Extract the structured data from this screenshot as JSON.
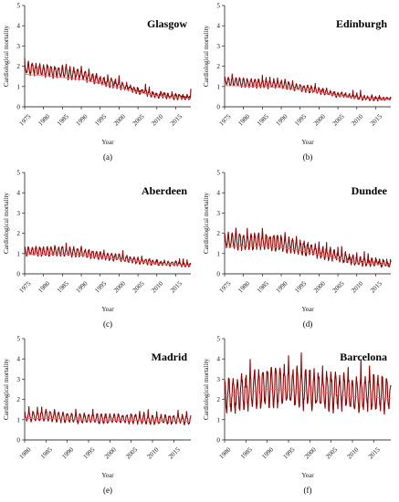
{
  "colors": {
    "raw": "#8b0000",
    "trend": "#f06a6a",
    "axis": "#000000"
  },
  "chart_data": [
    {
      "type": "line",
      "panel": "a",
      "title": "Glasgow",
      "caption": "(a)",
      "xlabel": "Year",
      "ylabel": "Cardiological mortality",
      "xlim": [
        1975,
        2019
      ],
      "ylim": [
        0,
        5
      ],
      "xticks": [
        1975,
        1980,
        1985,
        1990,
        1995,
        2000,
        2005,
        2010,
        2015
      ],
      "yticks": [
        0,
        1,
        2,
        3,
        4,
        5
      ],
      "x": [
        1975,
        1980,
        1985,
        1990,
        1995,
        2000,
        2005,
        2010,
        2015,
        2019
      ],
      "series": [
        {
          "role": "observed",
          "values": [
            1.9,
            1.8,
            1.7,
            1.6,
            1.3,
            1.1,
            0.8,
            0.6,
            0.5,
            0.45
          ],
          "seasonal_amplitude": 0.28
        },
        {
          "role": "trend",
          "values": [
            1.6,
            1.55,
            1.45,
            1.35,
            1.15,
            0.95,
            0.72,
            0.55,
            0.45,
            0.42
          ]
        }
      ]
    },
    {
      "type": "line",
      "panel": "b",
      "title": "Edinburgh",
      "caption": "(b)",
      "xlabel": "Year",
      "ylabel": "Cardiological mortality",
      "xlim": [
        1975,
        2019
      ],
      "ylim": [
        0,
        5
      ],
      "xticks": [
        1975,
        1980,
        1985,
        1990,
        1995,
        2000,
        2005,
        2010,
        2015
      ],
      "yticks": [
        0,
        1,
        2,
        3,
        4,
        5
      ],
      "x": [
        1975,
        1980,
        1985,
        1990,
        1995,
        2000,
        2005,
        2010,
        2015,
        2019
      ],
      "series": [
        {
          "role": "observed",
          "values": [
            1.25,
            1.2,
            1.15,
            1.1,
            0.95,
            0.8,
            0.6,
            0.48,
            0.4,
            0.38
          ],
          "seasonal_amplitude": 0.2
        },
        {
          "role": "trend",
          "values": [
            1.05,
            1.03,
            1.0,
            0.95,
            0.85,
            0.72,
            0.55,
            0.45,
            0.38,
            0.36
          ]
        }
      ]
    },
    {
      "type": "line",
      "panel": "c",
      "title": "Aberdeen",
      "caption": "(c)",
      "xlabel": "Year",
      "ylabel": "Cardiological mortality",
      "xlim": [
        1975,
        2019
      ],
      "ylim": [
        0,
        5
      ],
      "xticks": [
        1975,
        1980,
        1985,
        1990,
        1995,
        2000,
        2005,
        2010,
        2015
      ],
      "yticks": [
        0,
        1,
        2,
        3,
        4,
        5
      ],
      "x": [
        1975,
        1980,
        1985,
        1990,
        1995,
        2000,
        2005,
        2010,
        2015,
        2019
      ],
      "series": [
        {
          "role": "observed",
          "values": [
            1.1,
            1.1,
            1.12,
            1.05,
            0.9,
            0.8,
            0.65,
            0.55,
            0.5,
            0.45
          ],
          "seasonal_amplitude": 0.2
        },
        {
          "role": "trend",
          "values": [
            0.95,
            0.97,
            0.98,
            0.92,
            0.82,
            0.72,
            0.6,
            0.5,
            0.45,
            0.42
          ]
        }
      ]
    },
    {
      "type": "line",
      "panel": "d",
      "title": "Dundee",
      "caption": "(d)",
      "xlabel": "Year",
      "ylabel": "Cardiological mortality",
      "xlim": [
        1975,
        2019
      ],
      "ylim": [
        0,
        5
      ],
      "xticks": [
        1975,
        1980,
        1985,
        1990,
        1995,
        2000,
        2005,
        2010,
        2015
      ],
      "yticks": [
        0,
        1,
        2,
        3,
        4,
        5
      ],
      "x": [
        1975,
        1980,
        1985,
        1990,
        1995,
        2000,
        2005,
        2010,
        2015,
        2019
      ],
      "series": [
        {
          "role": "observed",
          "values": [
            1.6,
            1.6,
            1.6,
            1.5,
            1.3,
            1.1,
            0.85,
            0.65,
            0.55,
            0.5
          ],
          "seasonal_amplitude": 0.35
        },
        {
          "role": "trend",
          "values": [
            1.35,
            1.38,
            1.38,
            1.3,
            1.15,
            0.95,
            0.75,
            0.58,
            0.48,
            0.45
          ]
        }
      ]
    },
    {
      "type": "line",
      "panel": "e",
      "title": "Madrid",
      "caption": "(e)",
      "xlabel": "Year",
      "ylabel": "Cardiological mortality",
      "xlim": [
        1980,
        2019
      ],
      "ylim": [
        0,
        5
      ],
      "xticks": [
        1980,
        1985,
        1990,
        1995,
        2000,
        2005,
        2010,
        2015
      ],
      "yticks": [
        0,
        1,
        2,
        3,
        4,
        5
      ],
      "x": [
        1980,
        1985,
        1990,
        1995,
        2000,
        2005,
        2010,
        2015,
        2019
      ],
      "series": [
        {
          "role": "observed",
          "values": [
            1.15,
            1.2,
            1.1,
            1.05,
            1.05,
            1.05,
            1.0,
            1.0,
            1.0
          ],
          "seasonal_amplitude": 0.22
        },
        {
          "role": "trend",
          "values": [
            1.05,
            1.07,
            1.02,
            0.98,
            0.98,
            0.97,
            0.94,
            0.93,
            0.93
          ]
        }
      ]
    },
    {
      "type": "line",
      "panel": "f",
      "title": "Barcelona",
      "caption": "(f)",
      "xlabel": "Year",
      "ylabel": "Cardiological mortality",
      "xlim": [
        1980,
        2019
      ],
      "ylim": [
        0,
        5
      ],
      "xticks": [
        1980,
        1985,
        1990,
        1995,
        2000,
        2005,
        2010,
        2015
      ],
      "yticks": [
        0,
        1,
        2,
        3,
        4,
        5
      ],
      "x": [
        1980,
        1985,
        1990,
        1995,
        2000,
        2005,
        2010,
        2015,
        2019
      ],
      "series": [
        {
          "role": "observed",
          "values": [
            2.2,
            2.4,
            2.6,
            2.6,
            2.5,
            2.4,
            2.3,
            2.3,
            2.2
          ],
          "seasonal_amplitude": 0.75
        },
        {
          "role": "trend",
          "values": [
            2.2,
            2.35,
            2.5,
            2.5,
            2.4,
            2.3,
            2.15,
            2.1,
            2.05
          ]
        }
      ]
    }
  ]
}
